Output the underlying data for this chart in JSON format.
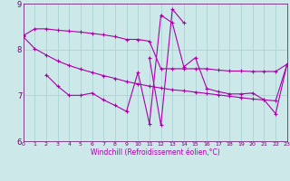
{
  "background_color": "#cce8e8",
  "grid_color": "#aad4d4",
  "line_color": "#aa00aa",
  "xlabel": "Windchill (Refroidissement éolien,°C)",
  "xlim": [
    0,
    23
  ],
  "ylim": [
    6,
    9
  ],
  "yticks": [
    6,
    7,
    8,
    9
  ],
  "xticks": [
    0,
    1,
    2,
    3,
    4,
    5,
    6,
    7,
    8,
    9,
    10,
    11,
    12,
    13,
    14,
    15,
    16,
    17,
    18,
    19,
    20,
    21,
    22,
    23
  ],
  "curve1_x": [
    0,
    1,
    2,
    3,
    4,
    5,
    6,
    7,
    8,
    9,
    10,
    11,
    12,
    13,
    14,
    15,
    16,
    17,
    18,
    19,
    20,
    21,
    22,
    23
  ],
  "curve1_y": [
    8.3,
    8.45,
    8.45,
    8.42,
    8.4,
    8.38,
    8.35,
    8.32,
    8.28,
    8.22,
    8.22,
    8.18,
    7.58,
    7.58,
    7.58,
    7.58,
    7.58,
    7.55,
    7.53,
    7.53,
    7.52,
    7.52,
    7.52,
    7.68
  ],
  "curve2_x": [
    0,
    1,
    2,
    3,
    4,
    5,
    6,
    7,
    8,
    9,
    10,
    11,
    12,
    13,
    14,
    15,
    16,
    17,
    18,
    19,
    20,
    21,
    22,
    23
  ],
  "curve2_y": [
    8.28,
    8.02,
    7.88,
    7.75,
    7.65,
    7.57,
    7.5,
    7.43,
    7.37,
    7.3,
    7.25,
    7.2,
    7.16,
    7.12,
    7.1,
    7.07,
    7.04,
    7.01,
    6.98,
    6.95,
    6.92,
    6.9,
    6.88,
    7.68
  ],
  "curve3_x": [
    2,
    3,
    4,
    5,
    6,
    7,
    8,
    9,
    10,
    11,
    12,
    13,
    14,
    15,
    16,
    17,
    18,
    19,
    20,
    21,
    22,
    23
  ],
  "curve3_y": [
    7.45,
    7.2,
    7.0,
    7.0,
    7.05,
    6.9,
    6.78,
    6.65,
    7.5,
    6.38,
    8.75,
    8.58,
    7.62,
    7.82,
    7.15,
    7.08,
    7.03,
    7.03,
    7.05,
    6.9,
    6.6,
    7.68
  ],
  "curve4_x": [
    11,
    12,
    13,
    14
  ],
  "curve4_y": [
    7.82,
    6.35,
    8.88,
    8.58
  ]
}
